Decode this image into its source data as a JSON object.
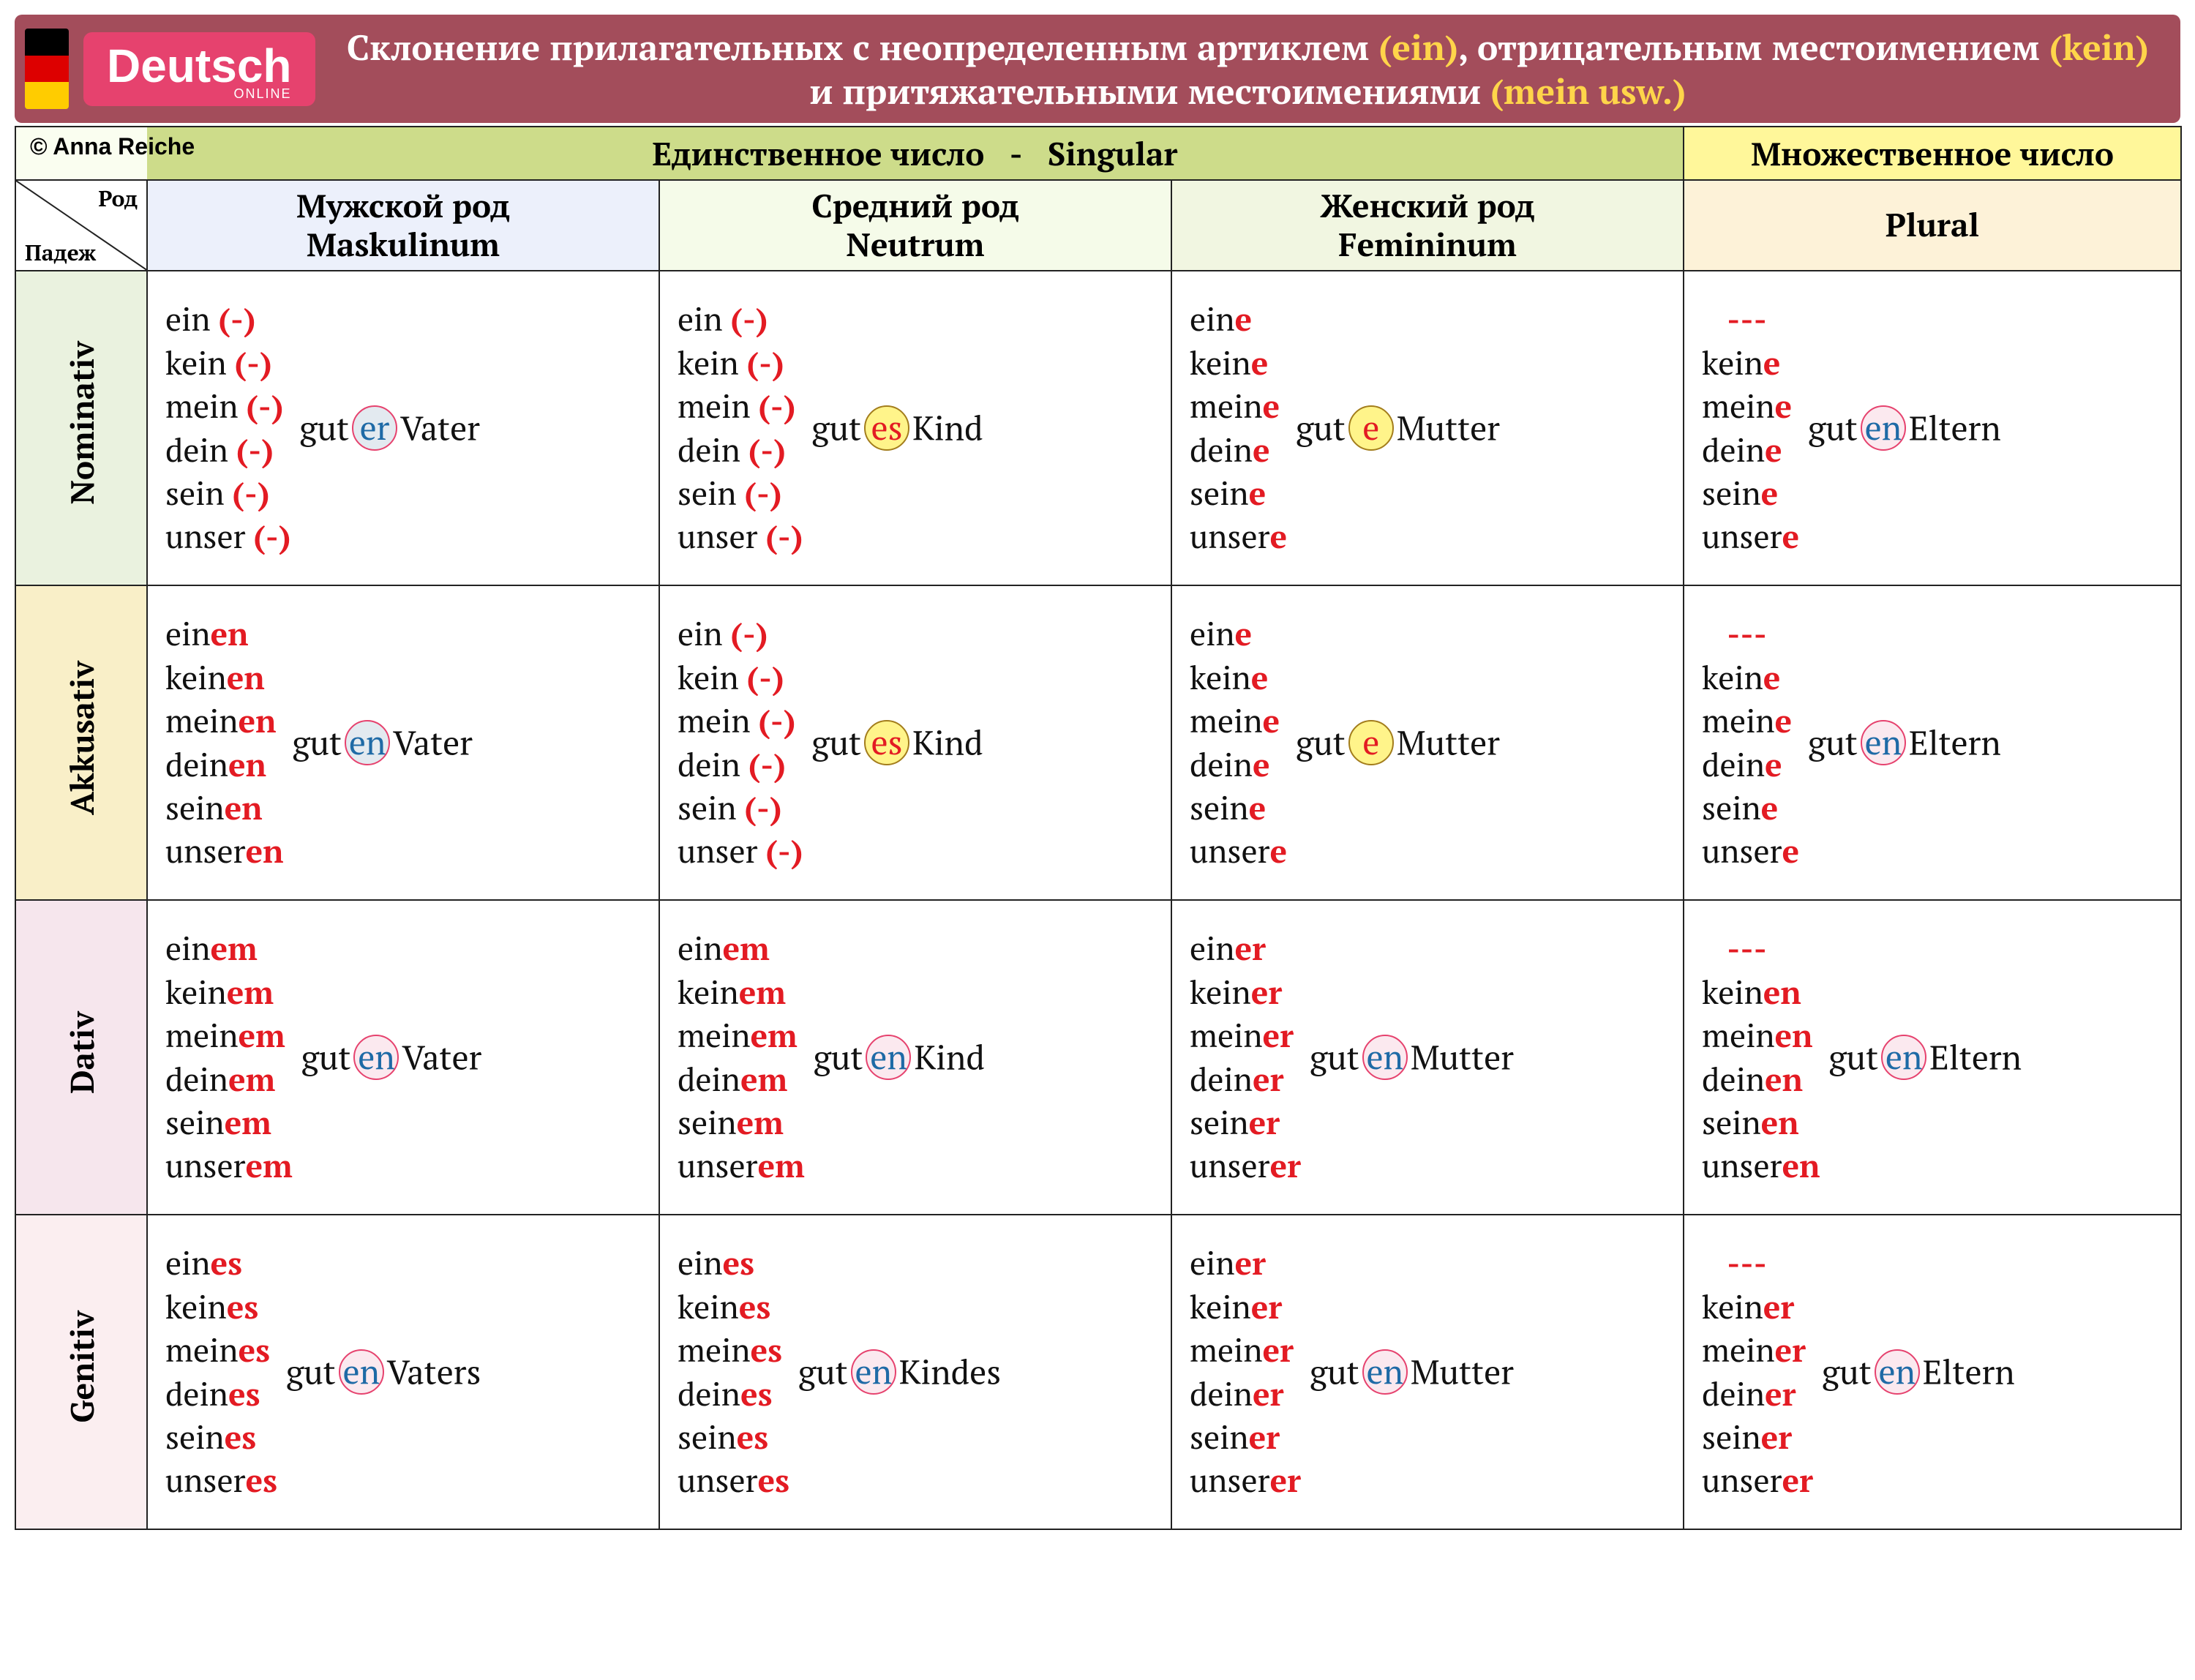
{
  "logo": {
    "title": "Deutsch",
    "sub": "ONLINE"
  },
  "header": {
    "line": "Склонение прилагательных с неопределенным артиклем <span class='y'>(ein)</span>, отрицательным местоимением <span class='y'>(kein)</span> и притяжательными местоимениями <span class='y'>(mein usw.)</span>"
  },
  "credit": "© Anna Reiche",
  "singular_label": "Единственное число&nbsp;&nbsp;&nbsp;-&nbsp;&nbsp;&nbsp;Singular",
  "plural_label": "Множественное число",
  "diag": {
    "top": "Род",
    "bottom": "Падеж"
  },
  "cols": [
    {
      "ru": "Мужской род",
      "la": "Maskulinum",
      "cls": "m"
    },
    {
      "ru": "Средний род",
      "la": "Neutrum",
      "cls": "n"
    },
    {
      "ru": "Женский род",
      "la": "Femininum",
      "cls": "f"
    },
    {
      "ru": "",
      "la": "Plural",
      "cls": "p"
    }
  ],
  "cases": [
    {
      "name": "Nominativ",
      "bg": "bg-nom"
    },
    {
      "name": "Akkusativ",
      "bg": "bg-akk"
    },
    {
      "name": "Dativ",
      "bg": "bg-dat"
    },
    {
      "name": "Genitiv",
      "bg": "bg-gen"
    }
  ],
  "art_roots": [
    "ein",
    "kein",
    "mein",
    "dein",
    "sein",
    "unser"
  ],
  "art_roots_plural": [
    "---",
    "kein",
    "mein",
    "dein",
    "sein",
    "unser"
  ],
  "table": {
    "Nominativ": {
      "m": {
        "ending": "(-)",
        "adj_end": "er",
        "pill": "blue",
        "noun": "Vater"
      },
      "n": {
        "ending": "(-)",
        "adj_end": "es",
        "pill": "yellow",
        "noun": "Kind"
      },
      "f": {
        "ending": "e",
        "adj_end": "e",
        "pill": "yellow",
        "noun": "Mutter"
      },
      "p": {
        "ending": "e",
        "adj_end": "en",
        "pill": "pink",
        "noun": "Eltern"
      }
    },
    "Akkusativ": {
      "m": {
        "ending": "en",
        "adj_end": "en",
        "pill": "blue",
        "noun": "Vater"
      },
      "n": {
        "ending": "(-)",
        "adj_end": "es",
        "pill": "yellow",
        "noun": "Kind"
      },
      "f": {
        "ending": "e",
        "adj_end": "e",
        "pill": "yellow",
        "noun": "Mutter"
      },
      "p": {
        "ending": "e",
        "adj_end": "en",
        "pill": "pink",
        "noun": "Eltern"
      }
    },
    "Dativ": {
      "m": {
        "ending": "em",
        "adj_end": "en",
        "pill": "pink",
        "noun": "Vater"
      },
      "n": {
        "ending": "em",
        "adj_end": "en",
        "pill": "pink",
        "noun": "Kind"
      },
      "f": {
        "ending": "er",
        "adj_end": "en",
        "pill": "pink",
        "noun": "Mutter"
      },
      "p": {
        "ending": "en",
        "adj_end": "en",
        "pill": "pink",
        "noun": "Eltern"
      }
    },
    "Genitiv": {
      "m": {
        "ending": "es",
        "adj_end": "en",
        "pill": "pink",
        "noun": "Vaters"
      },
      "n": {
        "ending": "es",
        "adj_end": "en",
        "pill": "pink",
        "noun": "Kindes"
      },
      "f": {
        "ending": "er",
        "adj_end": "en",
        "pill": "pink",
        "noun": "Mutter"
      },
      "p": {
        "ending": "er",
        "adj_end": "en",
        "pill": "pink",
        "noun": "Eltern"
      }
    }
  },
  "colors": {
    "header_bg": "#a34d5b",
    "logo_bg": "#e6426e",
    "accent_yellow": "#ffd54a",
    "ending_red": "#e31b23",
    "pill_blue_bg": "#e3eaf0",
    "pill_yellow_bg": "#fff48a",
    "pill_pink_bg": "#fbe9ef",
    "pill_text_blue": "#1e6aa6",
    "border": "#222"
  },
  "fontsize": {
    "body": 44,
    "header": 48
  }
}
